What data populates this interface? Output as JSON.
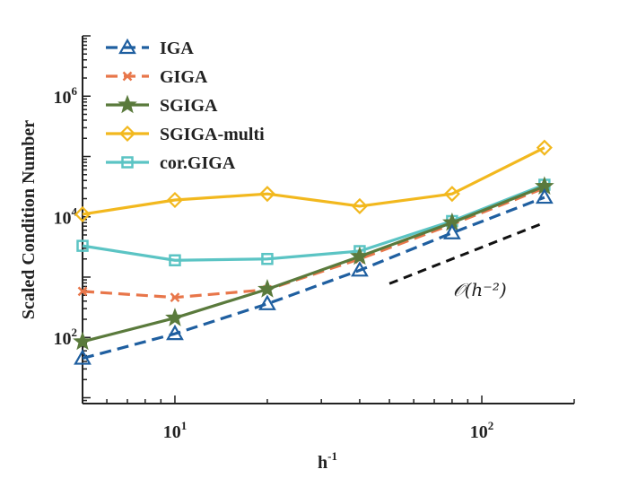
{
  "chart_data": {
    "type": "line",
    "scale": {
      "x": "log",
      "y": "log"
    },
    "xlabel": "h",
    "xlabel_sup": "-1",
    "ylabel": "Scaled Condition Number",
    "xlim": [
      5,
      200
    ],
    "ylim": [
      8,
      10000000
    ],
    "x_ticks": [
      {
        "base": "10",
        "exp": "1",
        "value": 10
      },
      {
        "base": "10",
        "exp": "2",
        "value": 100
      }
    ],
    "y_ticks": [
      {
        "base": "10",
        "exp": "2",
        "value": 100
      },
      {
        "base": "10",
        "exp": "4",
        "value": 10000
      },
      {
        "base": "10",
        "exp": "6",
        "value": 1000000
      }
    ],
    "legend_position": "top-left",
    "series": [
      {
        "name": "IGA",
        "color": "#1f5fa0",
        "dash": "dashed",
        "marker": "triangle",
        "x": [
          5,
          10,
          20,
          40,
          80,
          160
        ],
        "y": [
          45,
          115,
          360,
          1300,
          5400,
          21000
        ]
      },
      {
        "name": "GIGA",
        "color": "#e8764a",
        "dash": "dashed",
        "marker": "x",
        "x": [
          5,
          10,
          20,
          40,
          80,
          160
        ],
        "y": [
          580,
          460,
          620,
          2000,
          7500,
          30000
        ]
      },
      {
        "name": "SGIGA",
        "color": "#5a7a3c",
        "dash": "solid",
        "marker": "star",
        "x": [
          5,
          10,
          20,
          40,
          80,
          160
        ],
        "y": [
          85,
          210,
          630,
          2200,
          8000,
          32000
        ]
      },
      {
        "name": "SGIGA-multi",
        "color": "#f2b81e",
        "dash": "solid",
        "marker": "diamond",
        "x": [
          5,
          10,
          20,
          40,
          80,
          160
        ],
        "y": [
          11000,
          19000,
          24000,
          15000,
          24000,
          140000
        ]
      },
      {
        "name": "cor.GIGA",
        "color": "#5bc4c4",
        "dash": "solid",
        "marker": "square",
        "x": [
          5,
          10,
          20,
          40,
          80,
          160
        ],
        "y": [
          3300,
          1900,
          2000,
          2700,
          8500,
          34000
        ]
      }
    ],
    "reference_line": {
      "label": "𝒪(h⁻²)",
      "color": "#111111",
      "x": [
        50,
        160
      ],
      "y": [
        780,
        8000
      ]
    }
  }
}
